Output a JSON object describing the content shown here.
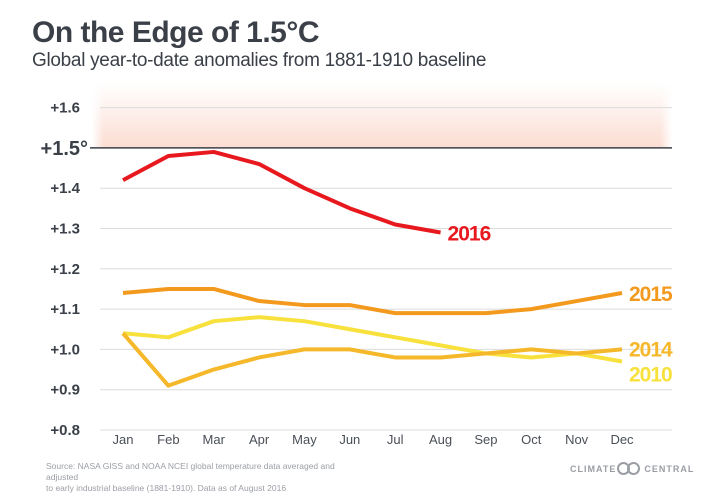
{
  "header": {
    "title": "On the Edge of 1.5°C",
    "subtitle": "Global year-to-date anomalies from 1881-1910 baseline"
  },
  "footer": {
    "source_line1": "Source: NASA GISS and NOAA NCEI global temperature data averaged and adjusted",
    "source_line2": "to early industrial baseline (1881-1910). Data as of August 2016",
    "logo_left": "CLIMATE",
    "logo_right": "CENTRAL"
  },
  "chart_data": {
    "type": "line",
    "title": "On the Edge of 1.5°C",
    "subtitle": "Global year-to-date anomalies from 1881-1910 baseline",
    "xlabel": "",
    "ylabel": "",
    "categories": [
      "Jan",
      "Feb",
      "Mar",
      "Apr",
      "May",
      "Jun",
      "Jul",
      "Aug",
      "Sep",
      "Oct",
      "Nov",
      "Dec"
    ],
    "ylim": [
      0.8,
      1.65
    ],
    "yticks": [
      {
        "value": 0.8,
        "label": "+0.8"
      },
      {
        "value": 0.9,
        "label": "+0.9"
      },
      {
        "value": 1.0,
        "label": "+1.0"
      },
      {
        "value": 1.1,
        "label": "+1.1"
      },
      {
        "value": 1.2,
        "label": "+1.2"
      },
      {
        "value": 1.3,
        "label": "+1.3"
      },
      {
        "value": 1.4,
        "label": "+1.4"
      },
      {
        "value": 1.5,
        "label": "+1.5°",
        "emphasis": true
      },
      {
        "value": 1.6,
        "label": "+1.6"
      }
    ],
    "threshold": {
      "value": 1.5,
      "color": "#3b4048",
      "shade_color": "#fbd9cd"
    },
    "grid": true,
    "legend": "inline-right",
    "series": [
      {
        "name": "2016",
        "color": "#e8191e",
        "values": [
          1.42,
          1.48,
          1.49,
          1.46,
          1.4,
          1.35,
          1.31,
          1.29,
          null,
          null,
          null,
          null
        ]
      },
      {
        "name": "2015",
        "color": "#f39a1e",
        "values": [
          1.14,
          1.15,
          1.15,
          1.12,
          1.11,
          1.11,
          1.09,
          1.09,
          1.09,
          1.1,
          1.12,
          1.14
        ]
      },
      {
        "name": "2014",
        "color": "#f5b82a",
        "values": [
          1.04,
          0.91,
          0.95,
          0.98,
          1.0,
          1.0,
          0.98,
          0.98,
          0.99,
          1.0,
          0.99,
          1.0
        ]
      },
      {
        "name": "2010",
        "color": "#f8e13c",
        "values": [
          1.04,
          1.03,
          1.07,
          1.08,
          1.07,
          1.05,
          1.03,
          1.01,
          0.99,
          0.98,
          0.99,
          0.97
        ]
      }
    ]
  }
}
